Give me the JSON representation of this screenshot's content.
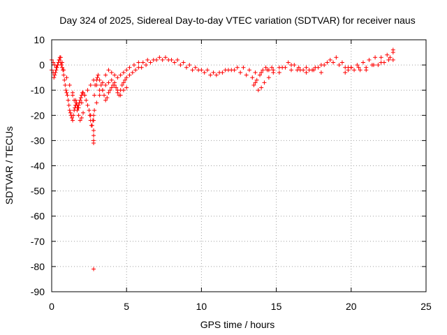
{
  "chart_data": {
    "type": "scatter",
    "title": "Day 324 of 2025, Sidereal Day-to-day VTEC variation (SDTVAR) for receiver naus",
    "xlabel": "GPS time / hours",
    "ylabel": "SDTVAR / TECUs",
    "xlim": [
      0,
      25
    ],
    "ylim": [
      -90,
      10
    ],
    "xticks": [
      0,
      5,
      10,
      15,
      20,
      25
    ],
    "yticks": [
      10,
      0,
      -10,
      -20,
      -30,
      -40,
      -50,
      -60,
      -70,
      -80,
      -90
    ],
    "grid": true,
    "marker": "+",
    "color": "#ff0000",
    "series": [
      {
        "name": "SDTVAR",
        "x": [
          0.0,
          0.1,
          0.15,
          0.2,
          0.25,
          0.3,
          0.35,
          0.4,
          0.45,
          0.5,
          0.55,
          0.6,
          0.65,
          0.7,
          0.75,
          0.8,
          0.85,
          0.9,
          0.95,
          1.0,
          1.05,
          1.1,
          1.15,
          1.2,
          1.25,
          1.3,
          1.35,
          1.4,
          1.45,
          1.5,
          1.55,
          1.6,
          1.65,
          1.7,
          1.75,
          1.8,
          1.85,
          1.9,
          1.95,
          2.0,
          2.05,
          2.1,
          2.2,
          2.3,
          2.4,
          2.5,
          2.55,
          2.6,
          2.65,
          2.7,
          2.75,
          2.8,
          2.85,
          2.85,
          2.9,
          3.0,
          3.05,
          3.1,
          3.2,
          3.3,
          3.4,
          3.5,
          3.6,
          3.7,
          3.8,
          3.9,
          4.0,
          4.1,
          4.2,
          4.3,
          4.4,
          4.5,
          4.6,
          4.7,
          4.8,
          4.9,
          5.0,
          5.2,
          5.4,
          5.6,
          5.8,
          6.0,
          6.3,
          6.6,
          7.0,
          7.4,
          7.8,
          8.2,
          8.6,
          9.0,
          9.4,
          9.8,
          10.2,
          10.6,
          11.0,
          11.4,
          11.8,
          12.2,
          12.6,
          13.0,
          13.4,
          13.6,
          13.8,
          14.0,
          14.2,
          14.5,
          14.8,
          15.2,
          15.4,
          15.8,
          16.2,
          16.6,
          17.0,
          17.4,
          17.8,
          18.2,
          18.6,
          19.0,
          19.4,
          19.8,
          20.2,
          20.6,
          21.0,
          21.4,
          21.8,
          22.2,
          22.6,
          22.8,
          0.0,
          0.1,
          0.2,
          0.3,
          0.4,
          0.5,
          0.6,
          0.7,
          0.8,
          1.0,
          1.2,
          1.4,
          1.6,
          1.8,
          2.0,
          2.2,
          2.4,
          2.6,
          2.8,
          3.0,
          3.2,
          3.4,
          3.6,
          3.8,
          4.0,
          4.2,
          4.4,
          4.6,
          4.8,
          5.0,
          5.2,
          5.5,
          5.8,
          6.1,
          6.4,
          6.8,
          7.2,
          7.6,
          8.0,
          8.4,
          8.8,
          9.2,
          9.6,
          10.0,
          10.4,
          10.8,
          11.2,
          11.6,
          12.0,
          12.4,
          12.8,
          13.2,
          13.6,
          14.0,
          14.4,
          14.8,
          15.2,
          15.6,
          16.0,
          16.4,
          16.8,
          17.2,
          17.6,
          18.0,
          18.4,
          18.8,
          19.2,
          19.6,
          20.0,
          20.4,
          20.8,
          21.2,
          21.6,
          22.0,
          22.4,
          22.8,
          1.4,
          1.5,
          1.6,
          1.7,
          1.8,
          1.9,
          2.0,
          2.1,
          2.6,
          2.8,
          3.0,
          3.2,
          3.4,
          3.6,
          3.8,
          4.0,
          4.2,
          4.4,
          4.6,
          4.8,
          5.0,
          13.5,
          13.7,
          13.9,
          14.1,
          14.3,
          14.5,
          14.7,
          16.0,
          16.5,
          17.0,
          17.5,
          18.0,
          19.6,
          19.8,
          20.0,
          20.5,
          21.0,
          21.5,
          22.0,
          22.5,
          22.8,
          2.8,
          2.8,
          2.8,
          2.8,
          2.8
        ],
        "y": [
          -2,
          -3,
          -5,
          -4,
          -3,
          -2,
          -1,
          0,
          1,
          2,
          3,
          1,
          0,
          -1,
          -2,
          -4,
          -6,
          -8,
          -10,
          -11,
          -12,
          -14,
          -16,
          -18,
          -19,
          -20,
          -21,
          -22,
          -20,
          -18,
          -17,
          -16,
          -15,
          -16,
          -17,
          -16,
          -15,
          -14,
          -13,
          -12,
          -11,
          -11,
          -12,
          -14,
          -16,
          -18,
          -20,
          -22,
          -24,
          -24,
          -22,
          -20,
          -18,
          -12,
          -8,
          -6,
          -5,
          -4,
          -6,
          -8,
          -10,
          -12,
          -14,
          -13,
          -11,
          -10,
          -9,
          -8,
          -7,
          -9,
          -11,
          -12,
          -10,
          -8,
          -7,
          -6,
          -5,
          -4,
          -3,
          -2,
          -1,
          -1,
          0,
          1,
          2,
          2,
          2,
          1,
          0,
          -1,
          -2,
          -2,
          -3,
          -4,
          -4,
          -3,
          -2,
          -2,
          -3,
          -4,
          -5,
          -7,
          -10,
          -9,
          -7,
          -5,
          -3,
          -3,
          -1,
          1,
          0,
          -2,
          -3,
          -2,
          -1,
          0,
          2,
          3,
          1,
          -1,
          -2,
          -2,
          -1,
          0,
          0,
          1,
          3,
          6,
          2,
          1,
          0,
          -1,
          0,
          2,
          3,
          1,
          -2,
          -5,
          -8,
          -11,
          -14,
          -17,
          -15,
          -12,
          -10,
          -8,
          -6,
          -8,
          -10,
          -7,
          -4,
          -2,
          -3,
          -4,
          -5,
          -4,
          -3,
          -2,
          -1,
          0,
          1,
          1,
          2,
          2,
          3,
          3,
          2,
          2,
          1,
          0,
          -1,
          -2,
          -2,
          -3,
          -3,
          -2,
          -2,
          -1,
          -1,
          -2,
          -3,
          -3,
          -2,
          -2,
          -1,
          -1,
          -2,
          -2,
          -2,
          -2,
          -1,
          0,
          1,
          1,
          0,
          -1,
          -1,
          0,
          1,
          2,
          3,
          3,
          4,
          5,
          -12,
          -14,
          -16,
          -18,
          -20,
          -22,
          -21,
          -19,
          -20,
          -22,
          -15,
          -12,
          -10,
          -8,
          -7,
          -6,
          -8,
          -10,
          -12,
          -10,
          -9,
          -8,
          -6,
          -4,
          -2,
          -1,
          -2,
          -1,
          0,
          -1,
          -1,
          -2,
          -3,
          -3,
          -2,
          -1,
          -1,
          -2,
          0,
          1,
          2,
          2,
          -26,
          -28,
          -30,
          -31,
          -81
        ]
      }
    ]
  }
}
